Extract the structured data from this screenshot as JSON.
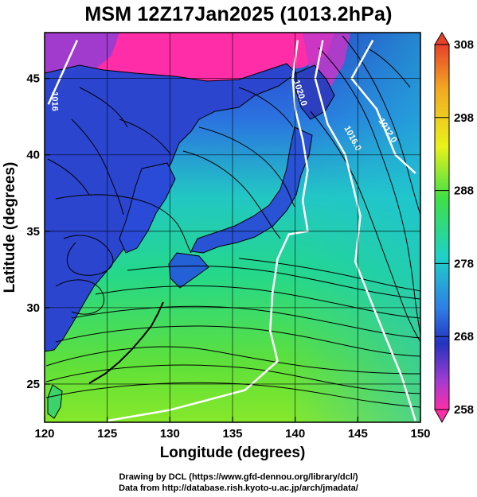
{
  "figure": {
    "title": "MSM 12Z17Jan2025 (1013.2hPa)",
    "xlabel": "Longitude (degrees)",
    "ylabel": "Latitude  (degrees)",
    "xticks": [
      "120",
      "125",
      "130",
      "135",
      "140",
      "145",
      "150"
    ],
    "yticks": [
      "25",
      "30",
      "35",
      "40",
      "45"
    ],
    "colorbar_ticks": [
      "308",
      "298",
      "288",
      "278",
      "268",
      "258"
    ],
    "contour_labels": [
      "1020.0",
      "1016.0",
      "1012.0",
      "1016"
    ],
    "credit_line1": "Drawing by DCL (https://www.gfd-dennou.org/library/dcl/)",
    "credit_line2": "Data from http://database.rish.kyoto-u.ac.jp/arch/jmadata/"
  },
  "colors": {
    "ocean_warm": "#5fe03a",
    "ocean_mid": "#1fd6a8",
    "cold": "#2a3ec8",
    "very_cold": "#ff2ea8",
    "coast": "#000000",
    "contour": "#ffffff"
  },
  "chart_data": {
    "type": "heatmap",
    "variable": "temperature at 1013.2hPa (K) with wind streamlines and pressure contours",
    "xlim": [
      120,
      150
    ],
    "ylim": [
      22.5,
      48
    ],
    "colorbar_range": [
      258,
      308
    ],
    "contours": [
      {
        "label": "1020.0",
        "points": [
          [
            140.2,
            47.5
          ],
          [
            139.8,
            45
          ],
          [
            140.0,
            43
          ],
          [
            140.6,
            41
          ],
          [
            141.0,
            39
          ],
          [
            140.6,
            37
          ],
          [
            141.0,
            35
          ],
          [
            139.5,
            34.8
          ],
          [
            138.6,
            33.2
          ],
          [
            138.2,
            31
          ],
          [
            138.0,
            28.5
          ],
          [
            138.6,
            26.5
          ],
          [
            136,
            24.6
          ],
          [
            130,
            23.3
          ],
          [
            125,
            22.6
          ]
        ]
      },
      {
        "label": "1016.0",
        "points": [
          [
            142.2,
            47.5
          ],
          [
            141.6,
            45
          ],
          [
            142.6,
            42
          ],
          [
            144,
            40
          ],
          [
            145.2,
            36
          ],
          [
            144.8,
            33
          ],
          [
            146.5,
            29.5
          ],
          [
            148.5,
            25.5
          ],
          [
            149.6,
            22.6
          ]
        ]
      },
      {
        "label": "1012.0",
        "points": [
          [
            146.2,
            47.5
          ],
          [
            144.5,
            45
          ],
          [
            146.5,
            43
          ],
          [
            148.0,
            40
          ],
          [
            149.6,
            38.8
          ]
        ]
      },
      {
        "label": "1016",
        "points": [
          [
            122.6,
            47.5
          ],
          [
            121.5,
            45.5
          ],
          [
            120.3,
            43.3
          ]
        ]
      }
    ]
  }
}
